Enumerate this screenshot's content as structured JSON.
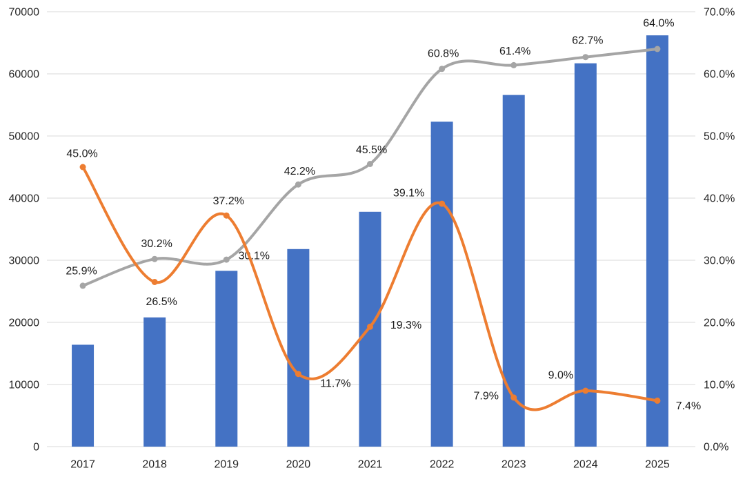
{
  "chart_data": {
    "type": "combo",
    "title": "",
    "categories": [
      "2017",
      "2018",
      "2019",
      "2020",
      "2021",
      "2022",
      "2023",
      "2024",
      "2025"
    ],
    "series": [
      {
        "name": "volume-bars",
        "type": "bar",
        "axis": "left",
        "color": "#4472C4",
        "values": [
          16400,
          20800,
          28300,
          31800,
          37800,
          52300,
          56600,
          61700,
          66200
        ]
      },
      {
        "name": "share-line-gray",
        "type": "line",
        "axis": "right",
        "color": "#A5A5A5",
        "values": [
          25.9,
          30.2,
          30.1,
          42.2,
          45.5,
          60.8,
          61.4,
          62.7,
          64.0
        ],
        "point_labels": [
          "25.9%",
          "30.2%",
          "30.1%",
          "42.2%",
          "45.5%",
          "60.8%",
          "61.4%",
          "62.7%",
          "64.0%"
        ]
      },
      {
        "name": "growth-line-orange",
        "type": "line",
        "axis": "right",
        "color": "#ED7D31",
        "values": [
          45.0,
          26.5,
          37.2,
          11.7,
          19.3,
          39.1,
          7.9,
          9.0,
          7.4
        ],
        "point_labels": [
          "45.0%",
          "26.5%",
          "37.2%",
          "11.7%",
          "19.3%",
          "39.1%",
          "7.9%",
          "9.0%",
          "7.4%"
        ]
      }
    ],
    "left_axis": {
      "min": 0,
      "max": 70000,
      "step": 10000,
      "tick_labels": [
        "0",
        "10000",
        "20000",
        "30000",
        "40000",
        "50000",
        "60000",
        "70000"
      ]
    },
    "right_axis": {
      "min": 0,
      "max": 70,
      "step": 10,
      "tick_labels": [
        "0.0%",
        "10.0%",
        "20.0%",
        "30.0%",
        "40.0%",
        "50.0%",
        "60.0%",
        "70.0%"
      ]
    },
    "grid": true,
    "legend": "none",
    "colors": {
      "grid": "#D9D9D9",
      "axis_text": "#262626",
      "data_label_text": "#1a1a1a",
      "background": "#ffffff"
    }
  }
}
